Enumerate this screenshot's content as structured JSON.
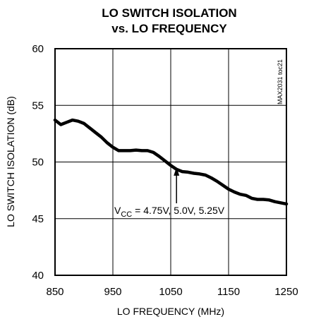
{
  "chart_data": {
    "type": "line",
    "title_line1": "LO SWITCH ISOLATION",
    "title_line2": "vs. LO FREQUENCY",
    "xlabel": "LO FREQUENCY (MHz)",
    "ylabel": "LO SWITCH ISOLATION (dB)",
    "xlim": [
      850,
      1250
    ],
    "ylim": [
      40,
      60
    ],
    "xticks": [
      850,
      950,
      1050,
      1150,
      1250
    ],
    "yticks": [
      40,
      45,
      50,
      55,
      60
    ],
    "grid": true,
    "series": [
      {
        "x": [
          850,
          860,
          870,
          880,
          890,
          900,
          910,
          920,
          930,
          940,
          950,
          960,
          970,
          980,
          990,
          1000,
          1010,
          1020,
          1030,
          1040,
          1050,
          1060,
          1070,
          1080,
          1090,
          1100,
          1110,
          1120,
          1130,
          1140,
          1150,
          1160,
          1170,
          1180,
          1190,
          1200,
          1210,
          1220,
          1230,
          1240,
          1250
        ],
        "y": [
          53.7,
          53.3,
          53.5,
          53.7,
          53.6,
          53.4,
          53.0,
          52.6,
          52.2,
          51.7,
          51.3,
          51.0,
          51.0,
          51.0,
          51.05,
          51.0,
          51.0,
          50.85,
          50.5,
          50.1,
          49.7,
          49.35,
          49.15,
          49.1,
          49.0,
          48.95,
          48.85,
          48.6,
          48.3,
          47.95,
          47.6,
          47.35,
          47.15,
          47.05,
          46.8,
          46.7,
          46.7,
          46.65,
          46.5,
          46.4,
          46.3
        ]
      }
    ],
    "annotation": {
      "text_prefix": "V",
      "text_sub": "CC",
      "text_suffix": " = 4.75V, 5.0V, 5.25V",
      "arrow_to": [
        1060,
        49.6
      ]
    },
    "figure_id": "MAX2031 toc21"
  }
}
